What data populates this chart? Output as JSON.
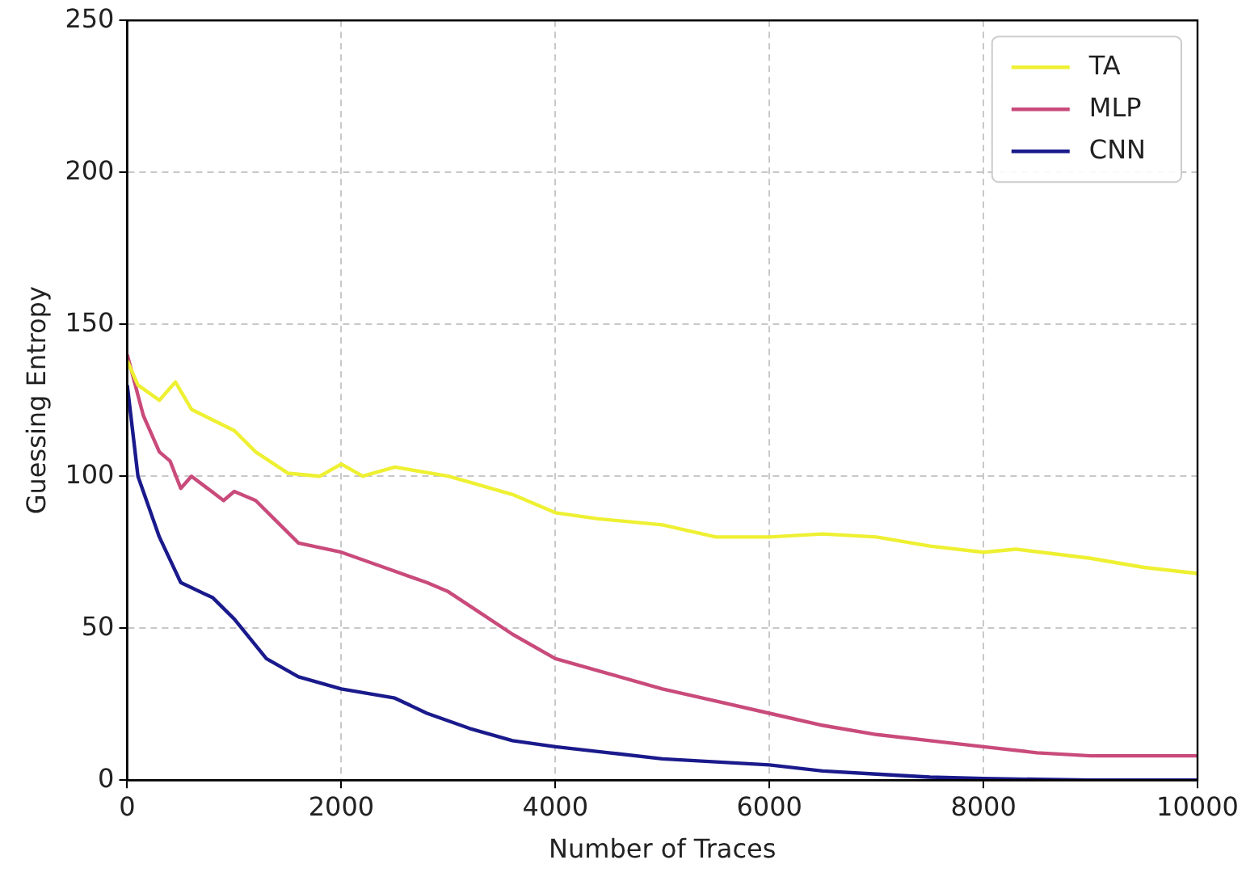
{
  "chart_data": {
    "type": "line",
    "xlabel": "Number of Traces",
    "ylabel": "Guessing Entropy",
    "xlim": [
      0,
      10000
    ],
    "xticks": [
      0,
      2000,
      4000,
      6000,
      8000,
      10000
    ],
    "ylim": [
      0,
      250
    ],
    "yticks": [
      0,
      50,
      100,
      150,
      200,
      250
    ],
    "grid": true,
    "legend": "top right",
    "marker": "none",
    "line_style": "solid",
    "series": [
      {
        "name": "TA",
        "color": "#eef032",
        "x": [
          0,
          100,
          300,
          450,
          600,
          1000,
          1200,
          1500,
          1800,
          2000,
          2200,
          2500,
          3000,
          3200,
          3600,
          4000,
          4400,
          5000,
          5500,
          6000,
          6500,
          7000,
          7500,
          8000,
          8300,
          9000,
          9500,
          10000
        ],
        "values": [
          138,
          130,
          125,
          131,
          122,
          115,
          108,
          101,
          100,
          104,
          100,
          103,
          100,
          98,
          94,
          88,
          86,
          84,
          80,
          80,
          81,
          80,
          77,
          75,
          76,
          73,
          70,
          68
        ]
      },
      {
        "name": "MLP",
        "color": "#c94b7b",
        "x": [
          0,
          150,
          300,
          400,
          500,
          600,
          900,
          1000,
          1200,
          1400,
          1600,
          2000,
          2400,
          2800,
          3000,
          3300,
          3600,
          4000,
          4500,
          5000,
          5500,
          6000,
          6500,
          7000,
          7500,
          8000,
          8500,
          9000,
          10000
        ],
        "values": [
          140,
          120,
          108,
          105,
          96,
          100,
          92,
          95,
          92,
          85,
          78,
          75,
          70,
          65,
          62,
          55,
          48,
          40,
          35,
          30,
          26,
          22,
          18,
          15,
          13,
          11,
          9,
          8,
          8
        ]
      },
      {
        "name": "CNN",
        "color": "#1a1a8c",
        "x": [
          0,
          100,
          300,
          500,
          800,
          1000,
          1300,
          1600,
          2000,
          2500,
          2800,
          3200,
          3600,
          4000,
          4500,
          5000,
          5500,
          6000,
          6500,
          7000,
          7500,
          8000,
          9000,
          10000
        ],
        "values": [
          130,
          100,
          80,
          65,
          60,
          53,
          40,
          34,
          30,
          27,
          22,
          17,
          13,
          11,
          9,
          7,
          6,
          5,
          3,
          2,
          1,
          0.5,
          0,
          0
        ]
      }
    ]
  }
}
